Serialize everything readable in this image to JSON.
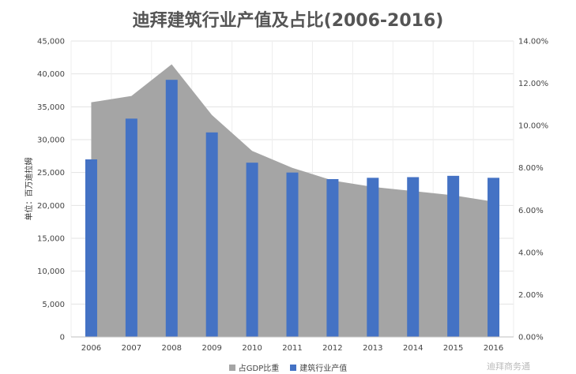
{
  "title": "迪拜建筑行业产值及占比(2006-2016)",
  "chart_data": {
    "type": "bar+area",
    "title": "迪拜建筑行业产值及占比(2006-2016)",
    "categories": [
      "2006",
      "2007",
      "2008",
      "2009",
      "2010",
      "2011",
      "2012",
      "2013",
      "2014",
      "2015",
      "2016"
    ],
    "series": [
      {
        "name": "建筑行业产值",
        "type": "bar",
        "axis": "left",
        "color": "#4472C4",
        "values": [
          27000,
          33200,
          39100,
          31100,
          26500,
          25000,
          24000,
          24200,
          24300,
          24500,
          24200
        ]
      },
      {
        "name": "占GDP比重",
        "type": "area",
        "axis": "right",
        "color": "#A5A5A5",
        "values": [
          11.1,
          11.4,
          12.9,
          10.5,
          8.8,
          8.0,
          7.4,
          7.1,
          6.9,
          6.7,
          6.4
        ]
      }
    ],
    "ylabel": "单位：百万迪拉姆",
    "y_left": {
      "min": 0,
      "max": 45000,
      "step": 5000,
      "tick_labels": [
        "0",
        "5,000",
        "10,000",
        "15,000",
        "20,000",
        "25,000",
        "30,000",
        "35,000",
        "40,000",
        "45,000"
      ]
    },
    "y_right": {
      "min": 0,
      "max": 14,
      "step": 2,
      "tick_labels": [
        "0.00%",
        "2.00%",
        "4.00%",
        "6.00%",
        "8.00%",
        "10.00%",
        "12.00%",
        "14.00%"
      ]
    },
    "grid": true,
    "legend_position": "bottom"
  },
  "legend": [
    {
      "label": "占GDP比重",
      "color": "#A5A5A5"
    },
    {
      "label": "建筑行业产值",
      "color": "#4472C4"
    }
  ],
  "watermark": "迪拜商务通"
}
